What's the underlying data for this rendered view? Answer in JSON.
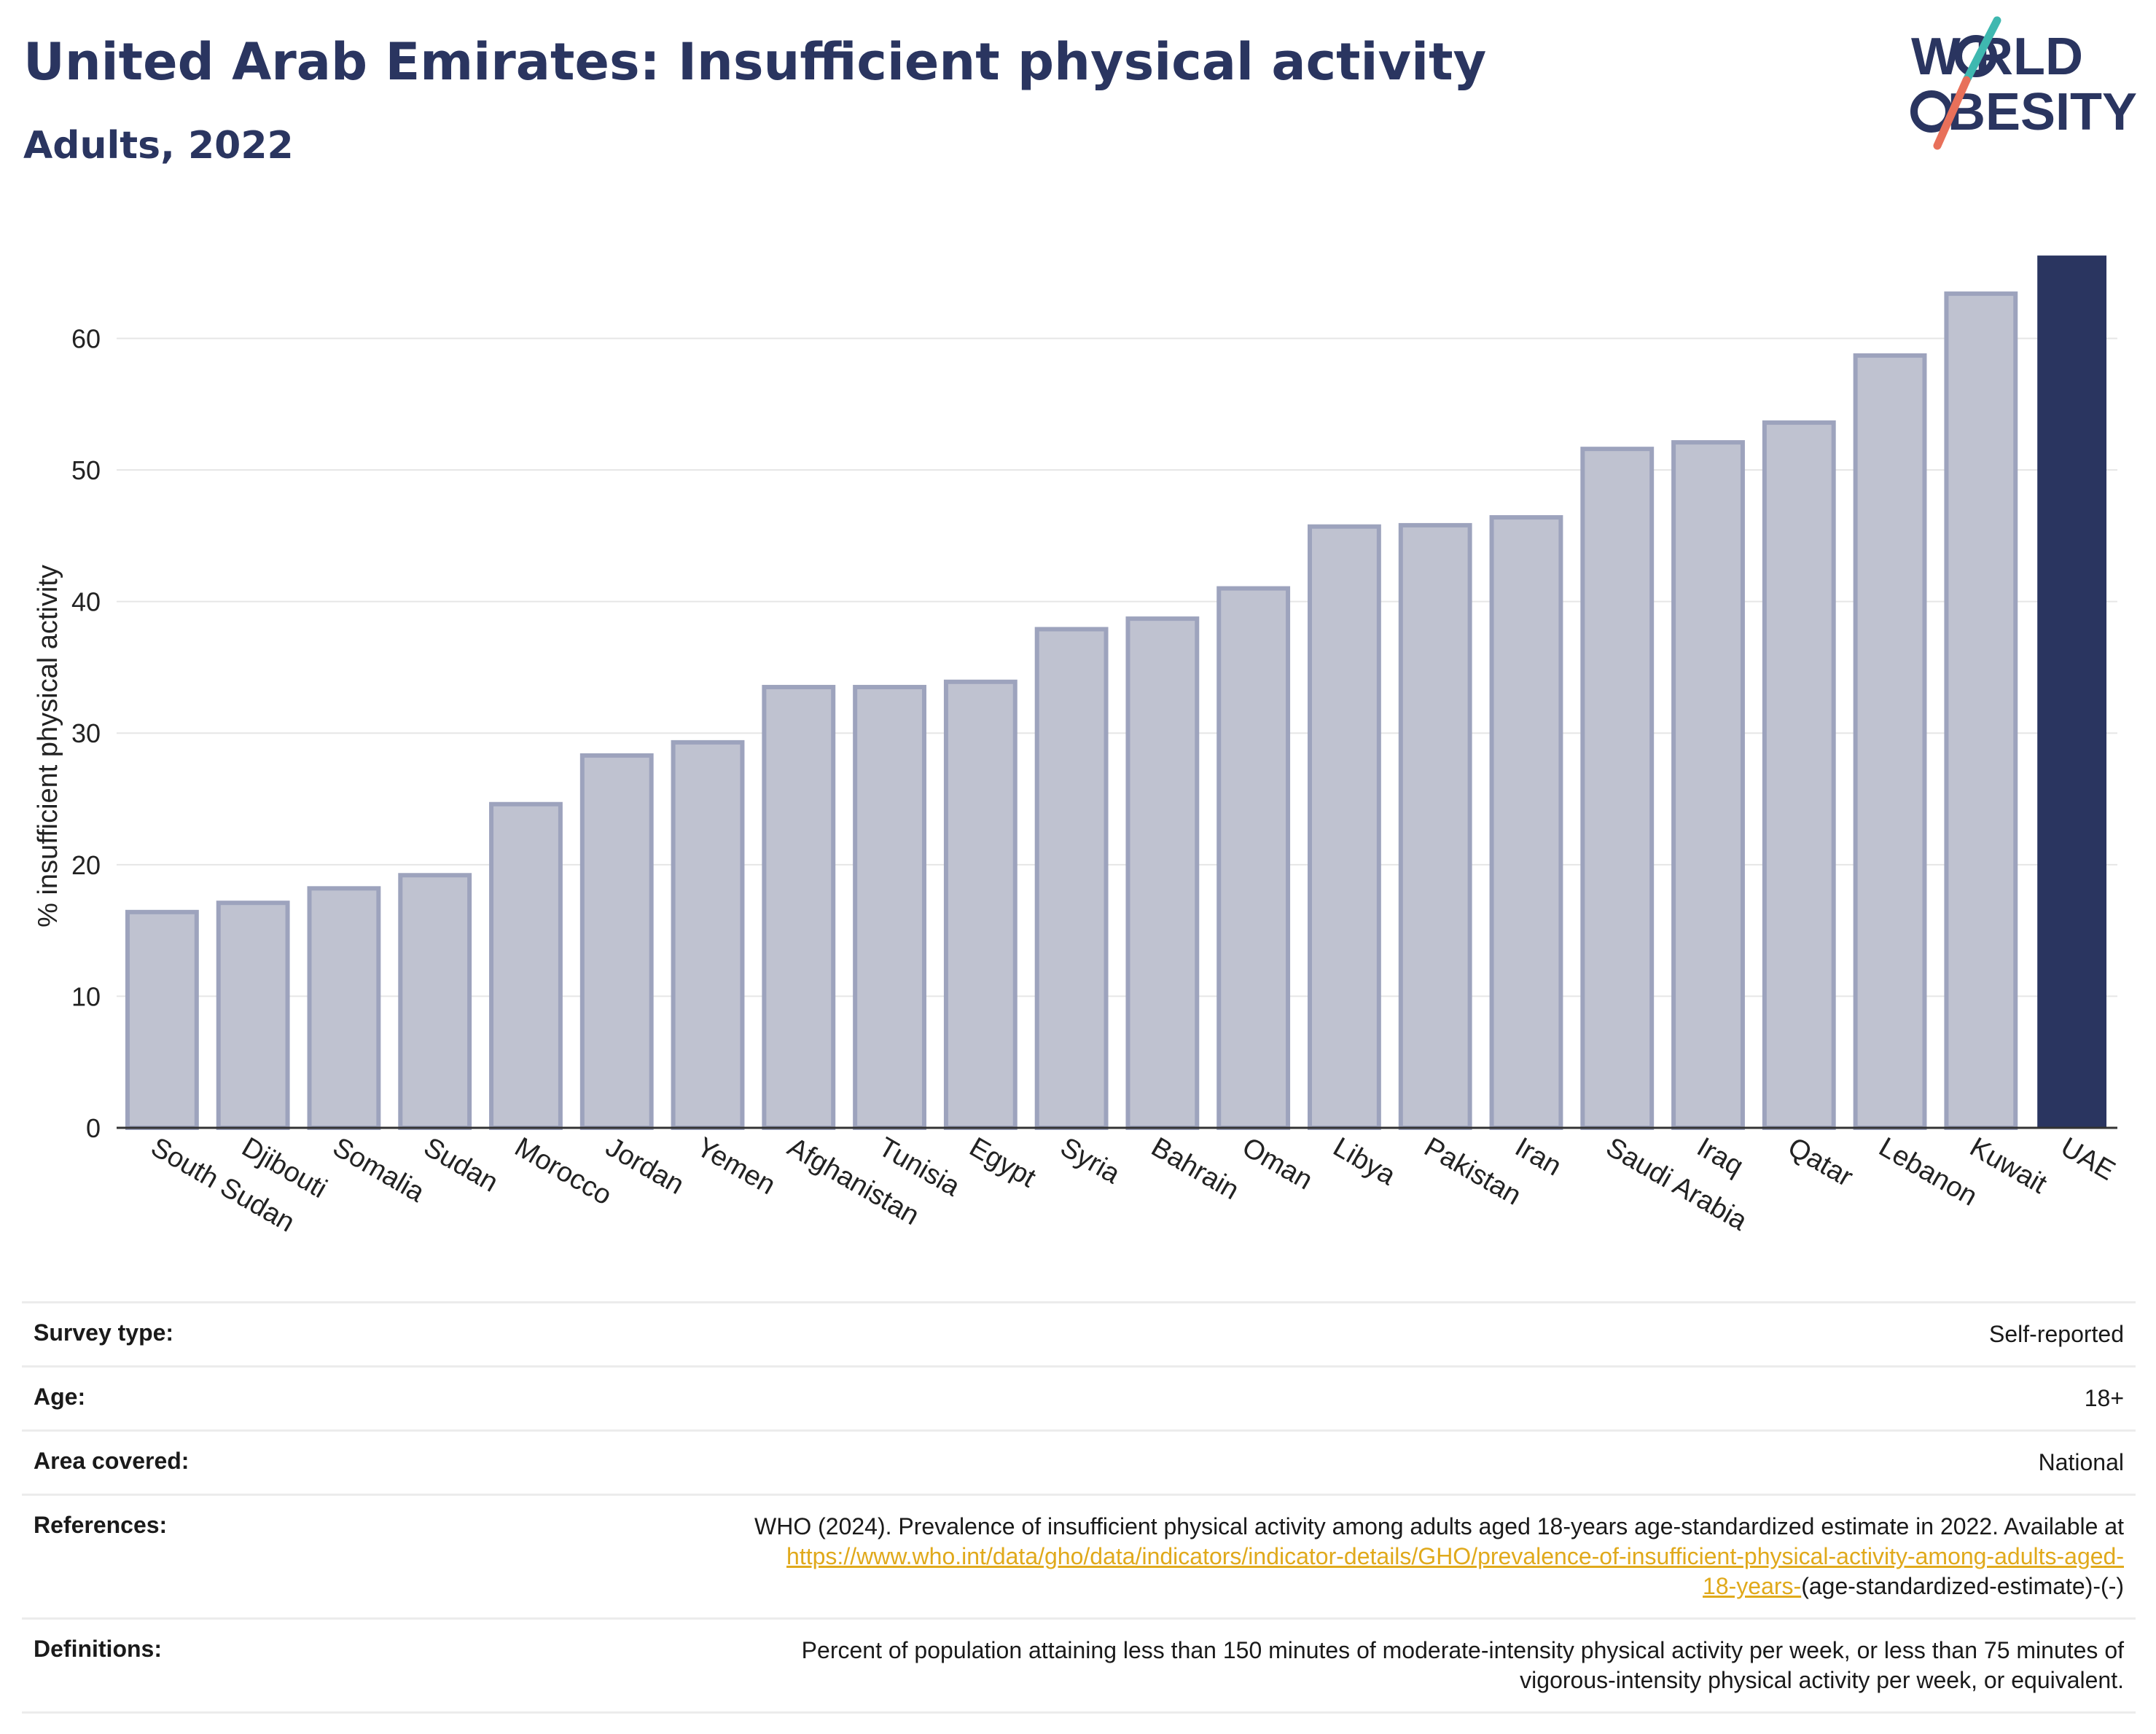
{
  "header": {
    "title": "United Arab Emirates: Insufficient physical activity",
    "subtitle": "Adults, 2022"
  },
  "logo": {
    "line1": "W RLD",
    "line2": "BESITY",
    "text": "WORLD OBESITY",
    "colors": {
      "text": "#2a3560",
      "slash_top": "#3fb8b0",
      "slash_bottom": "#e8705a"
    }
  },
  "chart_data": {
    "type": "bar",
    "title": "United Arab Emirates: Insufficient physical activity",
    "subtitle": "Adults, 2022",
    "ylabel": "% insufficient physical activity",
    "xlabel": "",
    "ylim": [
      0,
      68
    ],
    "yticks": [
      0,
      10,
      20,
      30,
      40,
      50,
      60
    ],
    "grid": true,
    "categories": [
      "South Sudan",
      "Djibouti",
      "Somalia",
      "Sudan",
      "Morocco",
      "Jordan",
      "Yemen",
      "Afghanistan",
      "Tunisia",
      "Egypt",
      "Syria",
      "Bahrain",
      "Oman",
      "Libya",
      "Pakistan",
      "Iran",
      "Saudi Arabia",
      "Iraq",
      "Qatar",
      "Lebanon",
      "Kuwait",
      "UAE"
    ],
    "values": [
      16.4,
      17.1,
      18.2,
      19.2,
      24.6,
      28.3,
      29.3,
      33.5,
      33.5,
      33.9,
      37.9,
      38.7,
      41.0,
      45.7,
      45.8,
      46.4,
      51.6,
      52.1,
      53.6,
      58.7,
      63.4,
      66.3
    ],
    "highlight": "UAE",
    "colors": {
      "bar_fill": "#bfc2d0",
      "bar_edge": "#9da3bd",
      "highlight": "#2a3560",
      "grid": "#e6e6e6",
      "axis": "#333333"
    }
  },
  "meta": {
    "survey_type_label": "Survey type:",
    "survey_type_value": "Self-reported",
    "age_label": "Age:",
    "age_value": "18+",
    "area_label": "Area covered:",
    "area_value": "National",
    "references_label": "References:",
    "references_text": "WHO (2024). Prevalence of insufficient physical activity among adults aged 18-years age-standardized estimate in 2022. Available at",
    "references_link_1": "https://www.who.int/data/gho/data/indicators/indicator-details/GHO/prevalence-of-insufficient-physical-activity-among-adults-aged-",
    "references_link_2": "18-years-",
    "references_tail": "(age-standardized-estimate)-(-)",
    "definitions_label": "Definitions:",
    "definitions_line_1": "Percent of population attaining less than 150 minutes of moderate-intensity physical activity per week, or less than 75 minutes of",
    "definitions_line_2": "vigorous-intensity physical activity per week, or equivalent."
  }
}
